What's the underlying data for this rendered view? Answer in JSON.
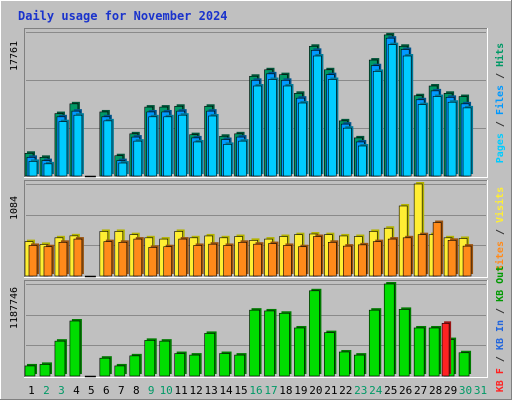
{
  "title": "Daily usage for November 2024",
  "colors": {
    "frame": "#c0c0c0",
    "title_blue": "#1a33cc",
    "hits": "#009966",
    "files": "#0099ff",
    "pages": "#00ccff",
    "visits": "#ffee33",
    "visits_side": "#ffff00",
    "sites": "#ff8a1a",
    "kin": "#00dd00",
    "kin_side": "#009900",
    "kout": "#2266dd",
    "kf": "#ff2222",
    "day_weekend": "#009966",
    "day_weekday": "#000000"
  },
  "chart_data": [
    {
      "type": "bar",
      "name": "top",
      "ymax": 17761,
      "ymax_label": "17761",
      "series_labels": [
        "Pages",
        "Files",
        "Hits"
      ],
      "categories": [
        "1",
        "2",
        "3",
        "4",
        "5",
        "6",
        "7",
        "8",
        "9",
        "10",
        "11",
        "12",
        "13",
        "14",
        "15",
        "16",
        "17",
        "18",
        "19",
        "20",
        "21",
        "22",
        "23",
        "24",
        "25",
        "26",
        "27",
        "28",
        "29",
        "30",
        "31"
      ],
      "series": [
        {
          "key": "hits",
          "values": [
            2800,
            2300,
            7700,
            8900,
            0,
            7900,
            2500,
            5200,
            8500,
            8500,
            8600,
            5100,
            8600,
            4900,
            5200,
            12300,
            13100,
            12500,
            10200,
            16000,
            13100,
            6800,
            4700,
            14300,
            17400,
            16000,
            9900,
            11100,
            10200,
            9800,
            0
          ]
        },
        {
          "key": "files",
          "values": [
            2300,
            1900,
            7300,
            8000,
            0,
            7300,
            1900,
            4800,
            7900,
            7900,
            8000,
            4700,
            8000,
            4500,
            4800,
            11800,
            12600,
            11800,
            9600,
            15500,
            12500,
            6400,
            4200,
            13600,
            17000,
            15600,
            9400,
            10500,
            9700,
            8900,
            0
          ]
        },
        {
          "key": "pages",
          "values": [
            1800,
            1500,
            6700,
            7500,
            0,
            6800,
            1600,
            4300,
            7300,
            7300,
            7500,
            4200,
            7400,
            3900,
            4300,
            11100,
            11900,
            11100,
            9000,
            14800,
            11900,
            5900,
            3700,
            12900,
            16200,
            14800,
            8800,
            9800,
            9100,
            8400,
            0
          ]
        }
      ]
    },
    {
      "type": "bar",
      "name": "middle",
      "ymax": 1084,
      "ymax_label": "1084",
      "series_labels": [
        "Sites",
        "Visits"
      ],
      "categories": [
        "1",
        "2",
        "3",
        "4",
        "5",
        "6",
        "7",
        "8",
        "9",
        "10",
        "11",
        "12",
        "13",
        "14",
        "15",
        "16",
        "17",
        "18",
        "19",
        "20",
        "21",
        "22",
        "23",
        "24",
        "25",
        "26",
        "27",
        "28",
        "29",
        "30",
        "31"
      ],
      "series": [
        {
          "key": "visits",
          "values": [
            405,
            372,
            450,
            473,
            0,
            525,
            525,
            487,
            450,
            435,
            525,
            450,
            472,
            450,
            465,
            420,
            435,
            465,
            487,
            495,
            487,
            472,
            465,
            525,
            563,
            825,
            1084,
            487,
            450,
            442,
            0
          ]
        },
        {
          "key": "sites",
          "values": [
            360,
            345,
            397,
            435,
            0,
            405,
            397,
            435,
            337,
            345,
            435,
            360,
            375,
            360,
            397,
            375,
            382,
            360,
            345,
            465,
            397,
            352,
            367,
            405,
            435,
            450,
            487,
            630,
            420,
            352,
            0
          ]
        }
      ]
    },
    {
      "type": "bar",
      "name": "bottom",
      "ymax": 1187746,
      "ymax_label": "1187746",
      "series_labels": [
        "KB F",
        "KB In",
        "KB Out"
      ],
      "categories": [
        "1",
        "2",
        "3",
        "4",
        "5",
        "6",
        "7",
        "8",
        "9",
        "10",
        "11",
        "12",
        "13",
        "14",
        "15",
        "16",
        "17",
        "18",
        "19",
        "20",
        "21",
        "22",
        "23",
        "24",
        "25",
        "26",
        "27",
        "28",
        "29",
        "30",
        "31"
      ],
      "series": [
        {
          "key": "kin",
          "values": [
            130000,
            150000,
            450000,
            710000,
            0,
            230000,
            130000,
            260000,
            460000,
            450000,
            290000,
            270000,
            550000,
            290000,
            270000,
            850000,
            840000,
            810000,
            620000,
            1100000,
            560000,
            310000,
            270000,
            850000,
            1187746,
            860000,
            620000,
            620000,
            470000,
            300000,
            0
          ]
        },
        {
          "key": "kf",
          "values": [
            0,
            0,
            0,
            0,
            0,
            0,
            0,
            0,
            0,
            0,
            0,
            0,
            0,
            0,
            0,
            0,
            0,
            0,
            0,
            0,
            0,
            0,
            0,
            0,
            0,
            0,
            0,
            0,
            680000,
            0,
            0
          ]
        }
      ]
    }
  ]
}
